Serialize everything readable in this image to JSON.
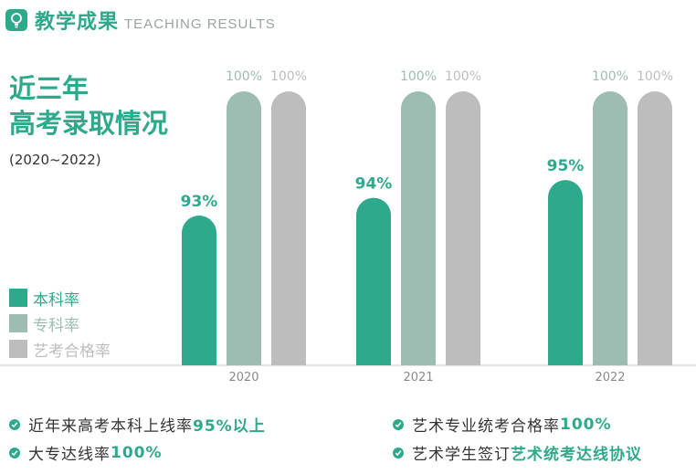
{
  "header": {
    "title": "教学成果",
    "subtitle": "TEACHING RESULTS"
  },
  "side": {
    "title_line1": "近三年",
    "title_line2": "高考录取情况",
    "years": "(2020~2022)"
  },
  "legend": [
    {
      "label": "本科率",
      "color": "#2fa98c"
    },
    {
      "label": "专科率",
      "color": "#9dbcb2"
    },
    {
      "label": "艺考合格率",
      "color": "#bdbdbd"
    }
  ],
  "chart_data": {
    "type": "bar",
    "categories": [
      "2020",
      "2021",
      "2022"
    ],
    "series": [
      {
        "name": "本科率",
        "values": [
          93,
          94,
          95
        ],
        "labels": [
          "93%",
          "94%",
          "95%"
        ],
        "color": "#2fa98c"
      },
      {
        "name": "专科率",
        "values": [
          100,
          100,
          100
        ],
        "labels": [
          "100%",
          "100%",
          "100%"
        ],
        "color": "#9dbcb2"
      },
      {
        "name": "艺考合格率",
        "values": [
          100,
          100,
          100
        ],
        "labels": [
          "100%",
          "100%",
          "100%"
        ],
        "color": "#bdbdbd"
      }
    ],
    "title": "近三年高考录取情况",
    "subtitle": "(2020~2022)",
    "xlabel": "",
    "ylabel": "",
    "grid": false,
    "legend_position": "left"
  },
  "bottom": {
    "item1_text": "近年来高考本科上线率",
    "item1_highlight": "95%以上",
    "item2_text": "艺术专业统考合格率",
    "item2_highlight": "100%",
    "item3_text": "大专达线率",
    "item3_highlight": "100%",
    "item4_text": "艺术学生签订",
    "item4_highlight": "艺术统考达线协议"
  }
}
